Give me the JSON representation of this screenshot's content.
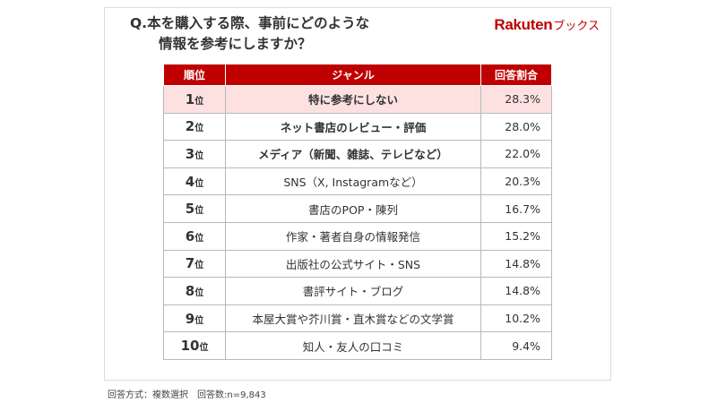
{
  "question": {
    "line1": "Q.本を購入する際、事前にどのような",
    "line2": "情報を参考にしますか？"
  },
  "brand": {
    "logo": "Rakuten",
    "suffix": "ブックス"
  },
  "colors": {
    "accent": "#bf0000",
    "highlight_row": "#fde1e1"
  },
  "table": {
    "headers": {
      "rank": "順位",
      "genre": "ジャンル",
      "rate": "回答割合"
    },
    "rows": [
      {
        "num": "1",
        "suffix": "位",
        "genre": "特に参考にしない",
        "rate": "28.3%"
      },
      {
        "num": "2",
        "suffix": "位",
        "genre": "ネット書店のレビュー・評価",
        "rate": "28.0%"
      },
      {
        "num": "3",
        "suffix": "位",
        "genre": "メディア（新聞、雑誌、テレビなど）",
        "rate": "22.0%"
      },
      {
        "num": "4",
        "suffix": "位",
        "genre": "SNS（X, Instagramなど）",
        "rate": "20.3%"
      },
      {
        "num": "5",
        "suffix": "位",
        "genre": "書店のPOP・陳列",
        "rate": "16.7%"
      },
      {
        "num": "6",
        "suffix": "位",
        "genre": "作家・著者自身の情報発信",
        "rate": "15.2%"
      },
      {
        "num": "7",
        "suffix": "位",
        "genre": "出版社の公式サイト・SNS",
        "rate": "14.8%"
      },
      {
        "num": "8",
        "suffix": "位",
        "genre": "書評サイト・ブログ",
        "rate": "14.8%"
      },
      {
        "num": "9",
        "suffix": "位",
        "genre": "本屋大賞や芥川賞・直木賞などの文学賞",
        "rate": "10.2%"
      },
      {
        "num": "10",
        "suffix": "位",
        "genre": "知人・友人の口コミ",
        "rate": "9.4%"
      }
    ]
  },
  "footnote": "回答方式：複数選択　回答数:n=9,843"
}
